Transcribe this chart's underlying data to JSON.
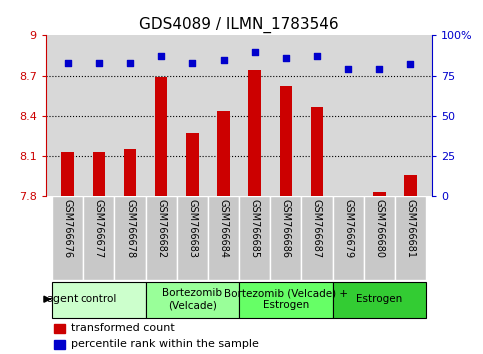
{
  "title": "GDS4089 / ILMN_1783546",
  "samples": [
    "GSM766676",
    "GSM766677",
    "GSM766678",
    "GSM766682",
    "GSM766683",
    "GSM766684",
    "GSM766685",
    "GSM766686",
    "GSM766687",
    "GSM766679",
    "GSM766680",
    "GSM766681"
  ],
  "bar_values": [
    8.13,
    8.13,
    8.15,
    8.69,
    8.27,
    8.44,
    8.74,
    8.62,
    8.47,
    7.801,
    7.83,
    7.96
  ],
  "dot_values": [
    83,
    83,
    83,
    87,
    83,
    85,
    90,
    86,
    87,
    79,
    79,
    82
  ],
  "bar_color": "#cc0000",
  "dot_color": "#0000cc",
  "ylim_left": [
    7.8,
    9.0
  ],
  "ylim_right": [
    0,
    100
  ],
  "yticks_left": [
    7.8,
    8.1,
    8.4,
    8.7,
    9.0
  ],
  "ytick_labels_left": [
    "7.8",
    "8.1",
    "8.4",
    "8.7",
    "9"
  ],
  "yticks_right": [
    0,
    25,
    50,
    75,
    100
  ],
  "ytick_labels_right": [
    "0",
    "25",
    "50",
    "75",
    "100%"
  ],
  "groups": [
    {
      "label": "control",
      "start": 0,
      "end": 3,
      "color": "#ccffcc"
    },
    {
      "label": "Bortezomib\n(Velcade)",
      "start": 3,
      "end": 6,
      "color": "#99ff99"
    },
    {
      "label": "Bortezomib (Velcade) +\nEstrogen",
      "start": 6,
      "end": 9,
      "color": "#66ff66"
    },
    {
      "label": "Estrogen",
      "start": 9,
      "end": 12,
      "color": "#33cc33"
    }
  ],
  "agent_label": "agent",
  "legend_bar_label": "transformed count",
  "legend_dot_label": "percentile rank within the sample",
  "plot_bg_color": "#d8d8d8",
  "xtick_bg_color": "#c8c8c8",
  "base_value": 7.8,
  "bar_width": 0.4
}
